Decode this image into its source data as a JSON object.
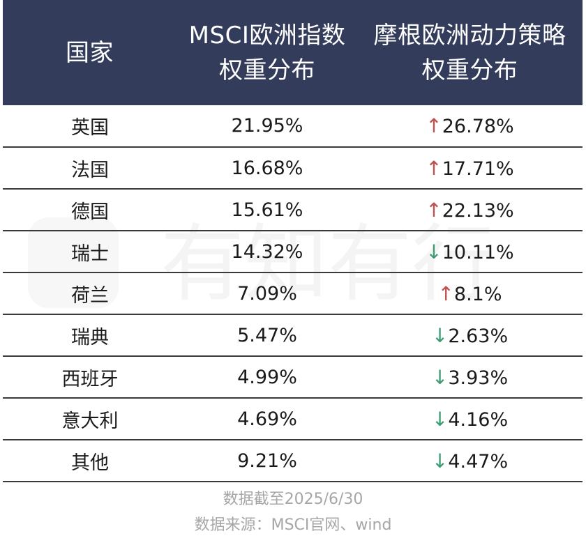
{
  "table": {
    "headers": {
      "country": "国家",
      "msci_line1": "MSCI欧洲指数",
      "msci_line2": "权重分布",
      "jpm_line1": "摩根欧洲动力策略",
      "jpm_line2": "权重分布"
    },
    "rows": [
      {
        "country": "英国",
        "msci": "21.95%",
        "jpm_dir": "↑",
        "jpm": "26.78%"
      },
      {
        "country": "法国",
        "msci": "16.68%",
        "jpm_dir": "↑",
        "jpm": "17.71%"
      },
      {
        "country": "德国",
        "msci": "15.61%",
        "jpm_dir": "↑",
        "jpm": "22.13%"
      },
      {
        "country": "瑞士",
        "msci": "14.32%",
        "jpm_dir": "↓",
        "jpm": "10.11%"
      },
      {
        "country": "荷兰",
        "msci": "7.09%",
        "jpm_dir": "↑",
        "jpm": "8.1%"
      },
      {
        "country": "瑞典",
        "msci": "5.47%",
        "jpm_dir": "↓",
        "jpm": "2.63%"
      },
      {
        "country": "西班牙",
        "msci": "4.99%",
        "jpm_dir": "↓",
        "jpm": "3.93%"
      },
      {
        "country": "意大利",
        "msci": "4.69%",
        "jpm_dir": "↓",
        "jpm": "4.16%"
      },
      {
        "country": "其他",
        "msci": "9.21%",
        "jpm_dir": "↓",
        "jpm": "4.47%"
      }
    ]
  },
  "notes": {
    "data_date": "数据截至2025/6/30",
    "data_source": "数据来源：MSCI官网、wind"
  },
  "watermark": {
    "text": "有知有行"
  },
  "colors": {
    "header_bg": "#343c5b",
    "up_arrow": "#c0504d",
    "down_arrow": "#3d9b72",
    "note_text": "#a6a6a6"
  }
}
